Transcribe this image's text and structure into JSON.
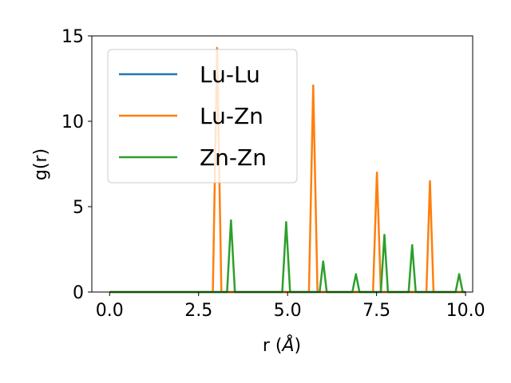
{
  "chart_data": {
    "type": "line",
    "title": "",
    "xlabel": "r (",
    "xlabel_symbol": "Å",
    "xlabel_close": ")",
    "ylabel": "g(r)",
    "xlim": [
      -0.5,
      10.2
    ],
    "ylim": [
      0,
      15
    ],
    "x_ticks": [
      0.0,
      2.5,
      5.0,
      7.5,
      10.0
    ],
    "x_tick_labels": [
      "0.0",
      "2.5",
      "5.0",
      "7.5",
      "10.0"
    ],
    "y_ticks": [
      0,
      5,
      10,
      15
    ],
    "y_tick_labels": [
      "0",
      "5",
      "10",
      "15"
    ],
    "grid": false,
    "legend_position": "upper-left",
    "series": [
      {
        "name": "Lu-Lu",
        "color": "#1f77b4",
        "x": [
          0.0,
          10.0
        ],
        "y": [
          0.0,
          0.0
        ]
      },
      {
        "name": "Lu-Zn",
        "color": "#ff7f0e",
        "x": [
          0.0,
          2.9,
          3.02,
          3.14,
          5.6,
          5.72,
          5.84,
          7.4,
          7.51,
          7.62,
          8.9,
          9.0,
          9.1,
          10.0
        ],
        "y": [
          0.0,
          0.0,
          14.3,
          0.0,
          0.0,
          12.1,
          0.0,
          0.0,
          7.0,
          0.0,
          0.0,
          6.5,
          0.0,
          0.0
        ]
      },
      {
        "name": "Zn-Zn",
        "color": "#2ca02c",
        "x": [
          0.0,
          3.3,
          3.41,
          3.52,
          4.85,
          4.96,
          5.07,
          5.9,
          6.0,
          6.1,
          6.82,
          6.92,
          7.02,
          7.62,
          7.72,
          7.82,
          8.4,
          8.5,
          8.6,
          9.72,
          9.82,
          9.92,
          10.0
        ],
        "y": [
          0.0,
          0.0,
          4.2,
          0.0,
          0.0,
          4.1,
          0.0,
          0.0,
          1.8,
          0.0,
          0.0,
          1.05,
          0.0,
          0.0,
          3.35,
          0.0,
          0.0,
          2.75,
          0.0,
          0.0,
          1.05,
          0.0,
          0.0
        ]
      }
    ]
  }
}
